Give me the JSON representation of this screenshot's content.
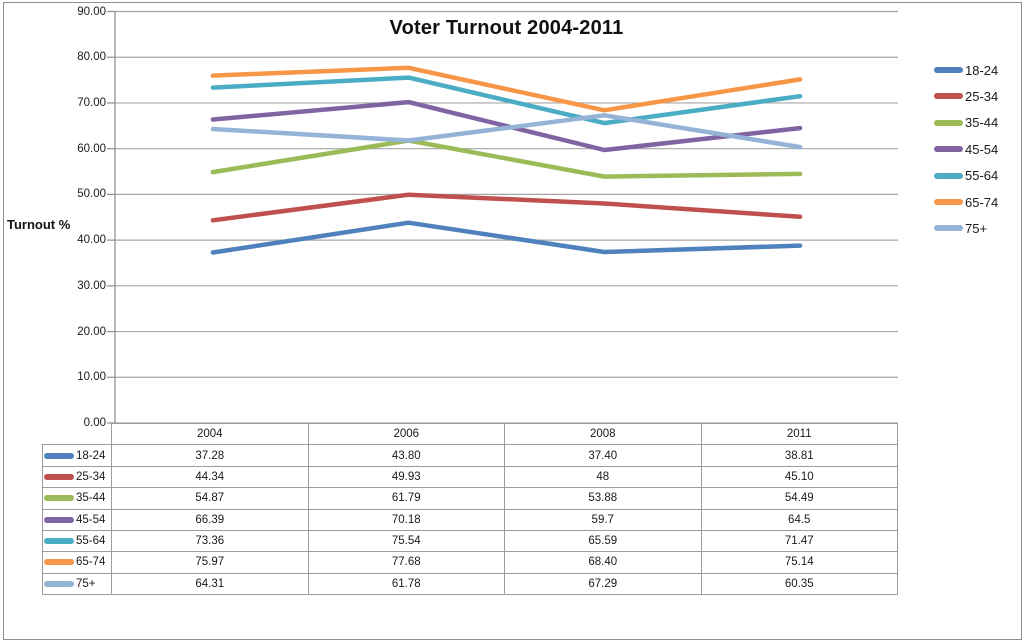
{
  "window": {
    "background": "#FFFFFF",
    "border_color": "#8E8E8E"
  },
  "chart_data": {
    "type": "line",
    "title": "Voter Turnout 2004-2011",
    "xlabel": "",
    "ylabel": "Turnout %",
    "categories": [
      "2004",
      "2006",
      "2008",
      "2011"
    ],
    "ylim": [
      0,
      90
    ],
    "ytick_step": 10,
    "ytick_labels": [
      "0.00",
      "10.00",
      "20.00",
      "30.00",
      "40.00",
      "50.00",
      "60.00",
      "70.00",
      "80.00",
      "90.00"
    ],
    "grid": "horizontal",
    "legend_position": "right",
    "has_data_table": true,
    "gridline_color": "#A6A6A6",
    "axis_color": "#8C8C8C",
    "series": [
      {
        "name": "18-24",
        "color": "#4F81BD",
        "values": [
          37.28,
          43.8,
          37.4,
          38.81
        ],
        "cell_text": [
          "37.28",
          "43.80",
          "37.40",
          "38.81"
        ]
      },
      {
        "name": "25-34",
        "color": "#C0504D",
        "values": [
          44.34,
          49.93,
          48,
          45.1
        ],
        "cell_text": [
          "44.34",
          "49.93",
          "48",
          "45.10"
        ]
      },
      {
        "name": "35-44",
        "color": "#9BBB59",
        "values": [
          54.87,
          61.79,
          53.88,
          54.49
        ],
        "cell_text": [
          "54.87",
          "61.79",
          "53.88",
          "54.49"
        ]
      },
      {
        "name": "45-54",
        "color": "#8064A2",
        "values": [
          66.39,
          70.18,
          59.7,
          64.5
        ],
        "cell_text": [
          "66.39",
          "70.18",
          "59.7",
          "64.5"
        ]
      },
      {
        "name": "55-64",
        "color": "#4BACC6",
        "values": [
          73.36,
          75.54,
          65.59,
          71.47
        ],
        "cell_text": [
          "73.36",
          "75.54",
          "65.59",
          "71.47"
        ]
      },
      {
        "name": "65-74",
        "color": "#F79646",
        "values": [
          75.97,
          77.68,
          68.4,
          75.14
        ],
        "cell_text": [
          "75.97",
          "77.68",
          "68.40",
          "75.14"
        ]
      },
      {
        "name": "75+",
        "color": "#95B3D7",
        "values": [
          64.31,
          61.78,
          67.29,
          60.35
        ],
        "cell_text": [
          "64.31",
          "61.78",
          "67.29",
          "60.35"
        ]
      }
    ]
  }
}
